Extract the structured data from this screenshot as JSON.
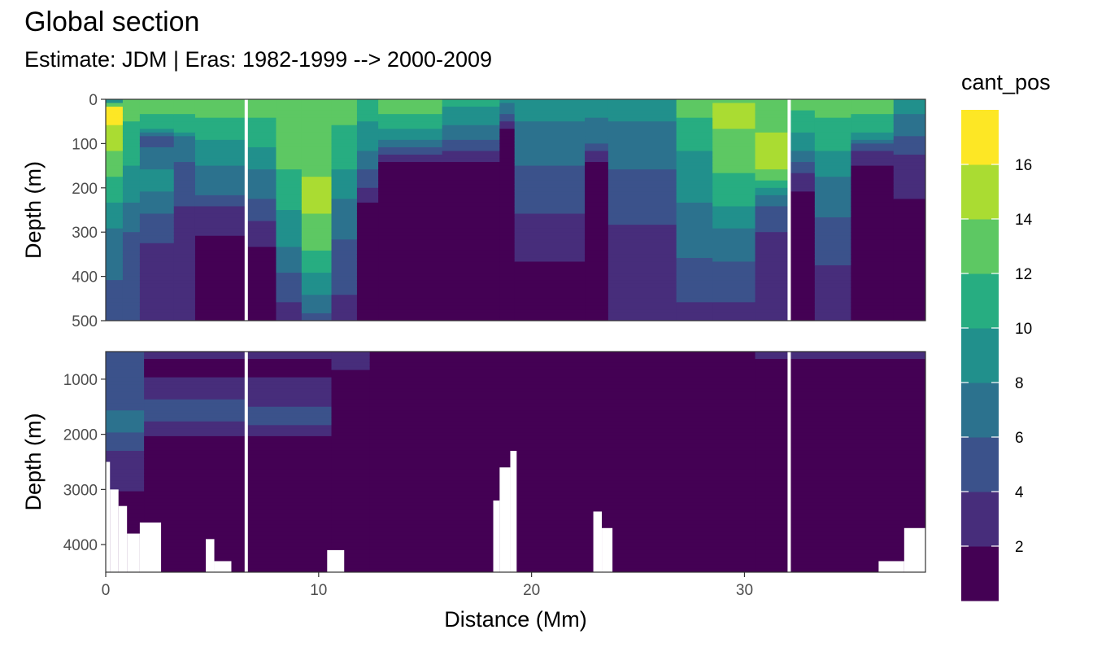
{
  "title": "Global section",
  "subtitle": "Estimate: JDM  | Eras: 1982-1999 --> 2000-2009",
  "chart_data": {
    "type": "heatmap",
    "xlabel": "Distance (Mm)",
    "ylabel": "Depth (m)",
    "xlim": [
      0,
      38.5
    ],
    "x_ticks": [
      0,
      10,
      20,
      30
    ],
    "grid": "on",
    "legend": {
      "title": "cant_pos",
      "position": "right",
      "breaks": [
        2,
        4,
        6,
        8,
        10,
        12,
        14,
        16
      ],
      "bins": [
        {
          "range": [
            0,
            2
          ],
          "color": "#440154"
        },
        {
          "range": [
            2,
            4
          ],
          "color": "#472D7B"
        },
        {
          "range": [
            4,
            6
          ],
          "color": "#3B528B"
        },
        {
          "range": [
            6,
            8
          ],
          "color": "#2C728E"
        },
        {
          "range": [
            8,
            10
          ],
          "color": "#21908C"
        },
        {
          "range": [
            10,
            12
          ],
          "color": "#27AD81"
        },
        {
          "range": [
            12,
            14
          ],
          "color": "#5DC863"
        },
        {
          "range": [
            14,
            16
          ],
          "color": "#AADC32"
        },
        {
          "range": [
            16,
            18
          ],
          "color": "#FDE725"
        }
      ]
    },
    "panels": [
      {
        "name": "upper",
        "ylim": [
          0,
          500
        ],
        "y_ticks": [
          0,
          100,
          200,
          300,
          400,
          500
        ],
        "gaps_x": [
          6.6,
          32.1
        ],
        "field": [
          {
            "x0": 0,
            "x1": 0.8,
            "profile": [
              [
                0,
                8
              ],
              [
                20,
                17
              ],
              [
                90,
                15
              ],
              [
                200,
                11
              ],
              [
                320,
                7
              ],
              [
                500,
                5
              ]
            ]
          },
          {
            "x0": 0.8,
            "x1": 1.6,
            "profile": [
              [
                0,
                13
              ],
              [
                100,
                11
              ],
              [
                200,
                9
              ],
              [
                330,
                5
              ],
              [
                500,
                4
              ]
            ]
          },
          {
            "x0": 1.6,
            "x1": 3.2,
            "profile": [
              [
                0,
                13
              ],
              [
                60,
                11
              ],
              [
                90,
                5
              ],
              [
                180,
                9
              ],
              [
                260,
                6
              ],
              [
                360,
                3
              ],
              [
                500,
                3
              ]
            ]
          },
          {
            "x0": 3.2,
            "x1": 4.2,
            "profile": [
              [
                0,
                13
              ],
              [
                70,
                11
              ],
              [
                90,
                7
              ],
              [
                200,
                5
              ],
              [
                280,
                3
              ],
              [
                500,
                3
              ]
            ]
          },
          {
            "x0": 4.2,
            "x1": 6.6,
            "profile": [
              [
                0,
                13
              ],
              [
                80,
                11
              ],
              [
                100,
                9
              ],
              [
                200,
                7
              ],
              [
                260,
                3
              ],
              [
                360,
                1
              ],
              [
                500,
                1
              ]
            ]
          },
          {
            "x0": 6.6,
            "x1": 8.0,
            "profile": [
              [
                0,
                13
              ],
              [
                90,
                11
              ],
              [
                120,
                9
              ],
              [
                200,
                7
              ],
              [
                300,
                3
              ],
              [
                370,
                1
              ],
              [
                500,
                1
              ]
            ]
          },
          {
            "x0": 8.0,
            "x1": 9.2,
            "profile": [
              [
                0,
                13
              ],
              [
                160,
                12
              ],
              [
                300,
                9
              ],
              [
                420,
                5
              ],
              [
                500,
                3
              ]
            ]
          },
          {
            "x0": 9.2,
            "x1": 10.6,
            "profile": [
              [
                0,
                13
              ],
              [
                150,
                13
              ],
              [
                200,
                15
              ],
              [
                320,
                13
              ],
              [
                420,
                9
              ],
              [
                500,
                5
              ]
            ]
          },
          {
            "x0": 10.6,
            "x1": 11.8,
            "profile": [
              [
                0,
                13
              ],
              [
                120,
                11
              ],
              [
                260,
                7
              ],
              [
                380,
                5
              ],
              [
                500,
                3
              ]
            ]
          },
          {
            "x0": 11.8,
            "x1": 12.8,
            "profile": [
              [
                0,
                11
              ],
              [
                100,
                9
              ],
              [
                180,
                5
              ],
              [
                250,
                1
              ],
              [
                500,
                1
              ]
            ]
          },
          {
            "x0": 12.8,
            "x1": 15.8,
            "profile": [
              [
                0,
                13
              ],
              [
                60,
                11
              ],
              [
                120,
                5
              ],
              [
                150,
                1
              ],
              [
                500,
                1
              ]
            ]
          },
          {
            "x0": 15.8,
            "x1": 18.5,
            "profile": [
              [
                0,
                11
              ],
              [
                80,
                7
              ],
              [
                150,
                1
              ],
              [
                500,
                1
              ]
            ]
          },
          {
            "x0": 18.5,
            "x1": 19.2,
            "profile": [
              [
                0,
                9
              ],
              [
                80,
                1
              ],
              [
                500,
                1
              ]
            ]
          },
          {
            "x0": 19.2,
            "x1": 22.5,
            "profile": [
              [
                0,
                9
              ],
              [
                100,
                7
              ],
              [
                200,
                5
              ],
              [
                320,
                3
              ],
              [
                420,
                1
              ],
              [
                500,
                1
              ]
            ]
          },
          {
            "x0": 22.5,
            "x1": 23.6,
            "profile": [
              [
                0,
                9
              ],
              [
                90,
                7
              ],
              [
                150,
                1
              ],
              [
                500,
                1
              ]
            ]
          },
          {
            "x0": 23.6,
            "x1": 26.8,
            "profile": [
              [
                0,
                9
              ],
              [
                100,
                7
              ],
              [
                220,
                5
              ],
              [
                350,
                3
              ],
              [
                500,
                3
              ]
            ]
          },
          {
            "x0": 26.8,
            "x1": 28.5,
            "profile": [
              [
                0,
                13
              ],
              [
                80,
                11
              ],
              [
                160,
                9
              ],
              [
                300,
                7
              ],
              [
                420,
                5
              ],
              [
                500,
                3
              ]
            ]
          },
          {
            "x0": 28.5,
            "x1": 30.5,
            "profile": [
              [
                0,
                13
              ],
              [
                20,
                15
              ],
              [
                120,
                13
              ],
              [
                220,
                11
              ],
              [
                320,
                7
              ],
              [
                420,
                5
              ],
              [
                500,
                3
              ]
            ]
          },
          {
            "x0": 30.5,
            "x1": 32.1,
            "profile": [
              [
                0,
                13
              ],
              [
                150,
                15
              ],
              [
                190,
                11
              ],
              [
                250,
                5
              ],
              [
                350,
                3
              ],
              [
                500,
                3
              ]
            ]
          },
          {
            "x0": 32.1,
            "x1": 33.3,
            "profile": [
              [
                0,
                13
              ],
              [
                100,
                9
              ],
              [
                180,
                3
              ],
              [
                240,
                1
              ],
              [
                500,
                1
              ]
            ]
          },
          {
            "x0": 33.3,
            "x1": 35.0,
            "profile": [
              [
                0,
                13
              ],
              [
                90,
                11
              ],
              [
                200,
                7
              ],
              [
                330,
                5
              ],
              [
                420,
                3
              ],
              [
                500,
                3
              ]
            ]
          },
          {
            "x0": 35.0,
            "x1": 37.0,
            "profile": [
              [
                0,
                13
              ],
              [
                70,
                11
              ],
              [
                120,
                3
              ],
              [
                180,
                1
              ],
              [
                500,
                1
              ]
            ]
          },
          {
            "x0": 37.0,
            "x1": 38.5,
            "profile": [
              [
                0,
                9
              ],
              [
                60,
                7
              ],
              [
                150,
                3
              ],
              [
                300,
                1
              ],
              [
                500,
                1
              ]
            ]
          }
        ]
      },
      {
        "name": "lower",
        "ylim": [
          500,
          4500
        ],
        "y_ticks": [
          1000,
          2000,
          3000,
          4000
        ],
        "gaps_x": [
          6.6,
          32.1
        ],
        "field": [
          {
            "x0": 0,
            "x1": 1.8,
            "profile": [
              [
                500,
                5
              ],
              [
                1400,
                5
              ],
              [
                1800,
                7
              ],
              [
                2150,
                5
              ],
              [
                2500,
                3
              ],
              [
                3600,
                1
              ],
              [
                4500,
                1
              ]
            ]
          },
          {
            "x0": 1.8,
            "x1": 6.6,
            "profile": [
              [
                500,
                3
              ],
              [
                800,
                1
              ],
              [
                1200,
                3
              ],
              [
                1600,
                5
              ],
              [
                2150,
                1
              ],
              [
                4500,
                1
              ]
            ]
          },
          {
            "x0": 6.6,
            "x1": 10.6,
            "profile": [
              [
                500,
                3
              ],
              [
                700,
                1
              ],
              [
                1300,
                3
              ],
              [
                1700,
                5
              ],
              [
                2150,
                1
              ],
              [
                4500,
                1
              ]
            ]
          },
          {
            "x0": 10.6,
            "x1": 12.4,
            "profile": [
              [
                500,
                3
              ],
              [
                1200,
                1
              ],
              [
                4500,
                1
              ]
            ]
          },
          {
            "x0": 12.4,
            "x1": 30.5,
            "profile": [
              [
                500,
                1
              ],
              [
                4500,
                1
              ]
            ]
          },
          {
            "x0": 30.5,
            "x1": 38.5,
            "profile": [
              [
                500,
                3
              ],
              [
                700,
                1
              ],
              [
                4500,
                1
              ]
            ]
          }
        ],
        "blank_bottom": [
          {
            "x0": 0,
            "x1": 0.2,
            "from_depth": 2500
          },
          {
            "x0": 0.2,
            "x1": 0.6,
            "from_depth": 3000
          },
          {
            "x0": 0.6,
            "x1": 1.0,
            "from_depth": 3300
          },
          {
            "x0": 1.0,
            "x1": 1.6,
            "from_depth": 3800
          },
          {
            "x0": 1.6,
            "x1": 2.6,
            "from_depth": 3600
          },
          {
            "x0": 4.7,
            "x1": 5.1,
            "from_depth": 3900
          },
          {
            "x0": 5.1,
            "x1": 5.9,
            "from_depth": 4300
          },
          {
            "x0": 10.4,
            "x1": 11.2,
            "from_depth": 4100
          },
          {
            "x0": 18.2,
            "x1": 18.5,
            "from_depth": 3200
          },
          {
            "x0": 18.5,
            "x1": 19.0,
            "from_depth": 2600
          },
          {
            "x0": 19.0,
            "x1": 19.3,
            "from_depth": 2300
          },
          {
            "x0": 22.9,
            "x1": 23.3,
            "from_depth": 3400
          },
          {
            "x0": 23.3,
            "x1": 23.8,
            "from_depth": 3700
          },
          {
            "x0": 36.3,
            "x1": 37.5,
            "from_depth": 4300
          },
          {
            "x0": 37.5,
            "x1": 38.5,
            "from_depth": 3700
          }
        ]
      }
    ]
  }
}
